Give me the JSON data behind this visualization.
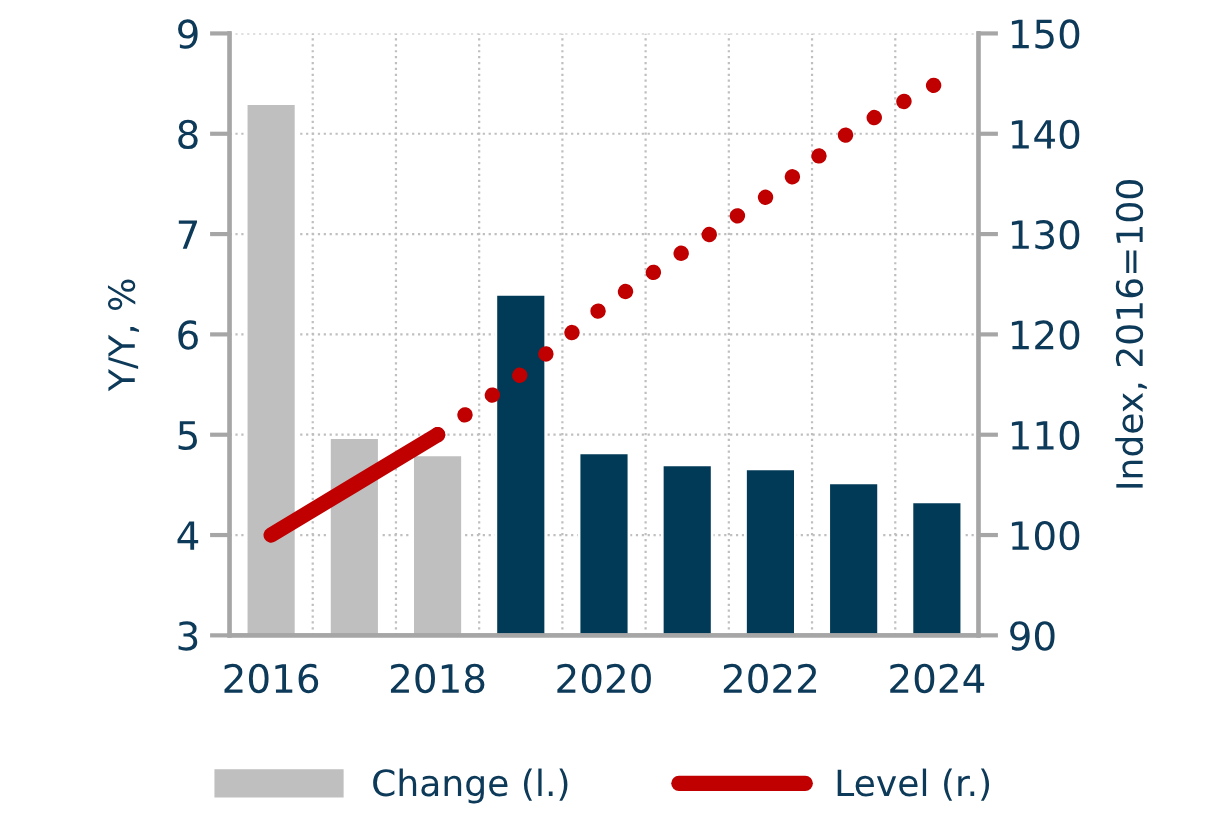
{
  "chart_data": {
    "type": "bar",
    "ylabel": "Y/Y, %",
    "y2label": "Index, 2016=100",
    "categories": [
      "2016",
      null,
      "2018",
      null,
      "2020",
      null,
      "2022",
      null,
      "2024"
    ],
    "series": [
      {
        "name": "Change (l.)",
        "color": "#bfbfbf",
        "colors": [
          "#bfbfbf",
          "#bfbfbf",
          "#bfbfbf",
          "#003a57",
          "#003a57",
          "#003a57",
          "#003a57",
          "#003a57",
          "#003a57"
        ],
        "values": [
          8.3,
          4.97,
          4.8,
          6.4,
          4.82,
          4.7,
          4.66,
          4.52,
          4.33
        ]
      },
      {
        "name": "Level (r.)",
        "type": "line",
        "axis": "y2",
        "color": "#c00000",
        "line_style": "solid",
        "values": [
          100,
          105,
          110,
          null,
          null,
          null,
          null,
          null,
          null
        ]
      },
      {
        "type": "line",
        "axis": "y2",
        "color": "#c00000",
        "line_style": "dotted",
        "values": [
          null,
          null,
          110,
          116,
          122.8,
          128.5,
          134,
          140.5,
          145
        ]
      }
    ],
    "ylim": [
      3,
      9
    ],
    "yticks": [
      3,
      4,
      5,
      6,
      7,
      8,
      9
    ],
    "y2lim": [
      90,
      150
    ],
    "y2ticks": [
      90,
      100,
      110,
      120,
      130,
      140,
      150
    ],
    "grid": true,
    "legend": "bottom"
  }
}
